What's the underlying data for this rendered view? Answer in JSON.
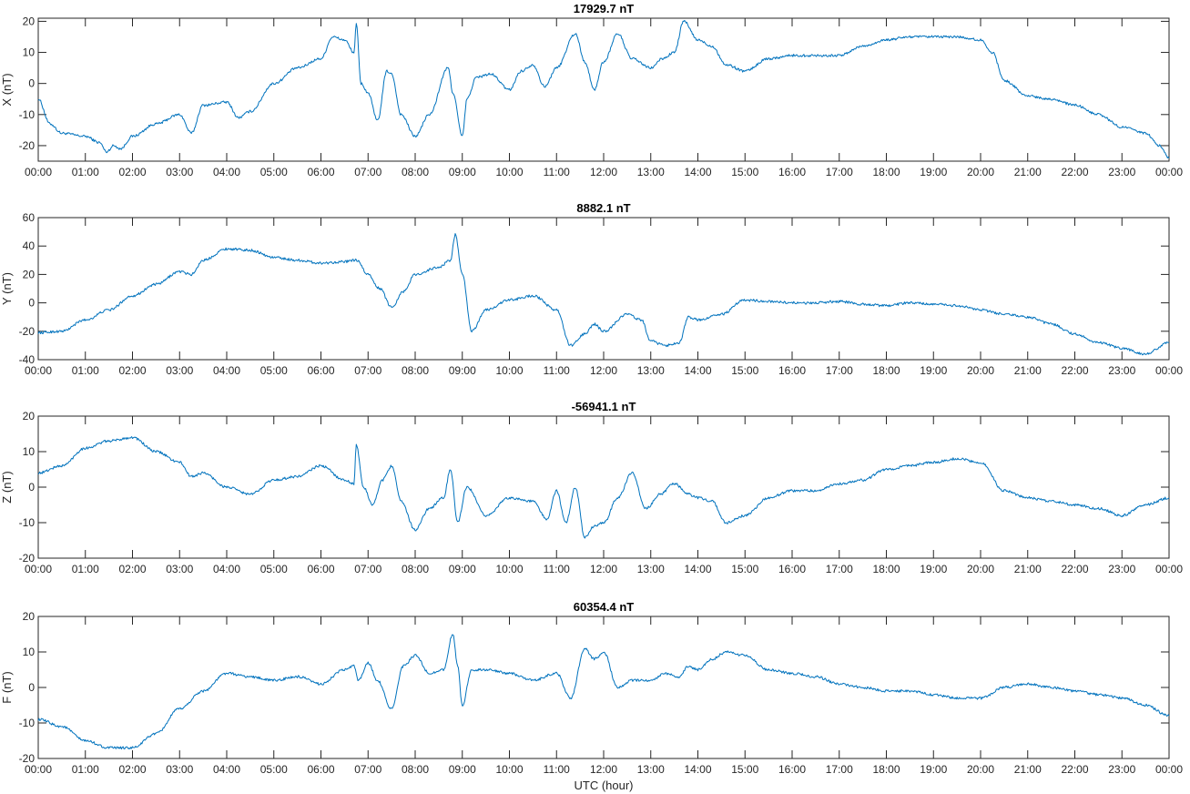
{
  "chart_data": [
    {
      "type": "line",
      "title": "17929.7 nT",
      "xlabel": "",
      "ylabel": "X (nT)",
      "xlim": [
        0,
        24
      ],
      "ylim": [
        -25,
        21
      ],
      "y_ticks": [
        -20,
        -10,
        0,
        10,
        20
      ],
      "x_tick_labels": [
        "00:00",
        "01:00",
        "02:00",
        "03:00",
        "04:00",
        "05:00",
        "06:00",
        "07:00",
        "08:00",
        "09:00",
        "10:00",
        "11:00",
        "12:00",
        "13:00",
        "14:00",
        "15:00",
        "16:00",
        "17:00",
        "18:00",
        "19:00",
        "20:00",
        "21:00",
        "22:00",
        "23:00",
        "00:00"
      ],
      "color": "#0072BD",
      "grid": false,
      "x": [
        0,
        0.25,
        0.5,
        1.0,
        1.3,
        1.45,
        1.6,
        1.75,
        2.0,
        2.5,
        3.0,
        3.25,
        3.5,
        4.0,
        4.25,
        4.5,
        5.0,
        5.5,
        6.0,
        6.25,
        6.5,
        6.7,
        6.75,
        6.85,
        7.0,
        7.2,
        7.4,
        7.5,
        7.7,
        8.0,
        8.3,
        8.7,
        8.8,
        9.0,
        9.1,
        9.3,
        9.6,
        10.0,
        10.25,
        10.5,
        10.75,
        11.0,
        11.4,
        11.6,
        11.8,
        12.0,
        12.3,
        12.6,
        13.0,
        13.25,
        13.5,
        13.7,
        14.0,
        14.3,
        14.6,
        15.0,
        15.5,
        16.0,
        16.5,
        17.0,
        17.5,
        18.0,
        18.5,
        19.0,
        19.5,
        20.0,
        20.25,
        20.5,
        21.0,
        21.5,
        22.0,
        22.5,
        23.0,
        23.5,
        23.8,
        24.0
      ],
      "y": [
        -5,
        -13,
        -16,
        -17,
        -19,
        -22,
        -20,
        -21,
        -17,
        -13,
        -10,
        -16,
        -7,
        -6,
        -11,
        -9,
        0,
        5,
        8,
        15,
        14,
        10,
        19,
        0,
        -3,
        -12,
        4,
        3,
        -10,
        -17,
        -10,
        5,
        -3,
        -17,
        -5,
        2,
        3,
        -2,
        4,
        6,
        -1,
        5,
        16,
        7,
        -2,
        7,
        16,
        8,
        5,
        8,
        10,
        20,
        14,
        12,
        6,
        4,
        8,
        9,
        9,
        9,
        12,
        14,
        15,
        15,
        15,
        14,
        10,
        1,
        -4,
        -5,
        -7,
        -10,
        -14,
        -16,
        -20,
        -24
      ]
    },
    {
      "type": "line",
      "title": "8882.1 nT",
      "xlabel": "",
      "ylabel": "Y (nT)",
      "xlim": [
        0,
        24
      ],
      "ylim": [
        -40,
        60
      ],
      "y_ticks": [
        -40,
        -20,
        0,
        20,
        40,
        60
      ],
      "x_tick_labels": [
        "00:00",
        "01:00",
        "02:00",
        "03:00",
        "04:00",
        "05:00",
        "06:00",
        "07:00",
        "08:00",
        "09:00",
        "10:00",
        "11:00",
        "12:00",
        "13:00",
        "14:00",
        "15:00",
        "16:00",
        "17:00",
        "18:00",
        "19:00",
        "20:00",
        "21:00",
        "22:00",
        "23:00",
        "00:00"
      ],
      "color": "#0072BD",
      "grid": false,
      "x": [
        0,
        0.5,
        1.0,
        1.5,
        2.0,
        2.5,
        3.0,
        3.25,
        3.5,
        4.0,
        4.5,
        5.0,
        5.5,
        6.0,
        6.5,
        6.75,
        7.0,
        7.25,
        7.5,
        7.75,
        8.0,
        8.5,
        8.75,
        8.85,
        9.0,
        9.2,
        9.5,
        10.0,
        10.5,
        11.0,
        11.3,
        11.6,
        11.8,
        12.0,
        12.5,
        12.8,
        13.0,
        13.3,
        13.6,
        13.8,
        14.0,
        14.5,
        15.0,
        15.5,
        16.0,
        16.5,
        17.0,
        17.5,
        18.0,
        18.5,
        19.0,
        19.5,
        20.0,
        20.5,
        21.0,
        21.5,
        22.0,
        22.5,
        23.0,
        23.5,
        24.0
      ],
      "y": [
        -21,
        -20,
        -12,
        -5,
        5,
        13,
        22,
        20,
        30,
        38,
        37,
        32,
        30,
        28,
        29,
        30,
        20,
        10,
        -3,
        8,
        20,
        25,
        30,
        48,
        20,
        -20,
        -5,
        2,
        5,
        -5,
        -30,
        -22,
        -15,
        -20,
        -8,
        -12,
        -27,
        -30,
        -28,
        -10,
        -12,
        -8,
        2,
        1,
        0,
        0,
        1,
        -1,
        -2,
        0,
        -1,
        -2,
        -5,
        -8,
        -10,
        -15,
        -22,
        -28,
        -32,
        -36,
        -28
      ]
    },
    {
      "type": "line",
      "title": "-56941.1 nT",
      "xlabel": "",
      "ylabel": "Z (nT)",
      "xlim": [
        0,
        24
      ],
      "ylim": [
        -20,
        20
      ],
      "y_ticks": [
        -20,
        -10,
        0,
        10,
        20
      ],
      "x_tick_labels": [
        "00:00",
        "01:00",
        "02:00",
        "03:00",
        "04:00",
        "05:00",
        "06:00",
        "07:00",
        "08:00",
        "09:00",
        "10:00",
        "11:00",
        "12:00",
        "13:00",
        "14:00",
        "15:00",
        "16:00",
        "17:00",
        "18:00",
        "19:00",
        "20:00",
        "21:00",
        "22:00",
        "23:00",
        "00:00"
      ],
      "color": "#0072BD",
      "grid": false,
      "x": [
        0,
        0.5,
        1.0,
        1.5,
        2.0,
        2.5,
        3.0,
        3.25,
        3.5,
        4.0,
        4.5,
        5.0,
        5.5,
        6.0,
        6.5,
        6.7,
        6.75,
        6.9,
        7.1,
        7.3,
        7.5,
        7.7,
        8.0,
        8.3,
        8.6,
        8.75,
        8.9,
        9.1,
        9.5,
        10.0,
        10.5,
        10.8,
        11.0,
        11.2,
        11.4,
        11.6,
        11.8,
        12.0,
        12.3,
        12.6,
        12.9,
        13.2,
        13.5,
        13.8,
        14.0,
        14.3,
        14.6,
        15.0,
        15.5,
        16.0,
        16.5,
        17.0,
        17.5,
        18.0,
        18.5,
        19.0,
        19.5,
        20.0,
        20.5,
        21.0,
        21.5,
        22.0,
        22.5,
        23.0,
        23.5,
        24.0
      ],
      "y": [
        4,
        6,
        11,
        13,
        14,
        10,
        7,
        3,
        4,
        0,
        -2,
        2,
        3,
        6,
        2,
        1,
        12,
        0,
        -5,
        2,
        6,
        -4,
        -12,
        -6,
        -3,
        5,
        -10,
        0,
        -8,
        -3,
        -4,
        -9,
        -1,
        -10,
        0,
        -14,
        -11,
        -10,
        -3,
        4,
        -6,
        -2,
        1,
        -2,
        -3,
        -4,
        -10,
        -8,
        -3,
        -1,
        -1,
        1,
        2,
        5,
        6,
        7,
        8,
        7,
        -1,
        -3,
        -4,
        -5,
        -6,
        -8,
        -5,
        -3
      ]
    },
    {
      "type": "line",
      "title": "60354.4 nT",
      "xlabel": "UTC (hour)",
      "ylabel": "F (nT)",
      "xlim": [
        0,
        24
      ],
      "ylim": [
        -20,
        20
      ],
      "y_ticks": [
        -20,
        -10,
        0,
        10,
        20
      ],
      "x_tick_labels": [
        "00:00",
        "01:00",
        "02:00",
        "03:00",
        "04:00",
        "05:00",
        "06:00",
        "07:00",
        "08:00",
        "09:00",
        "10:00",
        "11:00",
        "12:00",
        "13:00",
        "14:00",
        "15:00",
        "16:00",
        "17:00",
        "18:00",
        "19:00",
        "20:00",
        "21:00",
        "22:00",
        "23:00",
        "00:00"
      ],
      "color": "#0072BD",
      "grid": false,
      "x": [
        0,
        0.5,
        1.0,
        1.5,
        2.0,
        2.5,
        3.0,
        3.5,
        4.0,
        4.5,
        5.0,
        5.5,
        6.0,
        6.5,
        6.7,
        6.8,
        7.0,
        7.2,
        7.5,
        7.75,
        8.0,
        8.3,
        8.6,
        8.8,
        8.9,
        9.0,
        9.2,
        9.5,
        10.0,
        10.5,
        11.0,
        11.3,
        11.6,
        11.8,
        12.0,
        12.3,
        12.6,
        13.0,
        13.3,
        13.6,
        13.8,
        14.0,
        14.3,
        14.6,
        15.0,
        15.5,
        16.0,
        16.5,
        17.0,
        17.5,
        18.0,
        18.5,
        19.0,
        19.5,
        20.0,
        20.5,
        21.0,
        21.5,
        22.0,
        22.5,
        23.0,
        23.5,
        24.0
      ],
      "y": [
        -9,
        -11,
        -15,
        -17,
        -17,
        -13,
        -6,
        -1,
        4,
        3,
        2,
        3,
        1,
        5,
        6,
        2,
        7,
        2,
        -6,
        6,
        9,
        4,
        5,
        15,
        6,
        -5,
        5,
        5,
        4,
        2,
        4,
        -3,
        11,
        8,
        10,
        0,
        2,
        2,
        4,
        3,
        6,
        5,
        8,
        10,
        9,
        5,
        4,
        3,
        1,
        0,
        -1,
        -1,
        -2,
        -3,
        -3,
        0,
        1,
        0,
        -1,
        -2,
        -3,
        -5,
        -8
      ]
    }
  ]
}
